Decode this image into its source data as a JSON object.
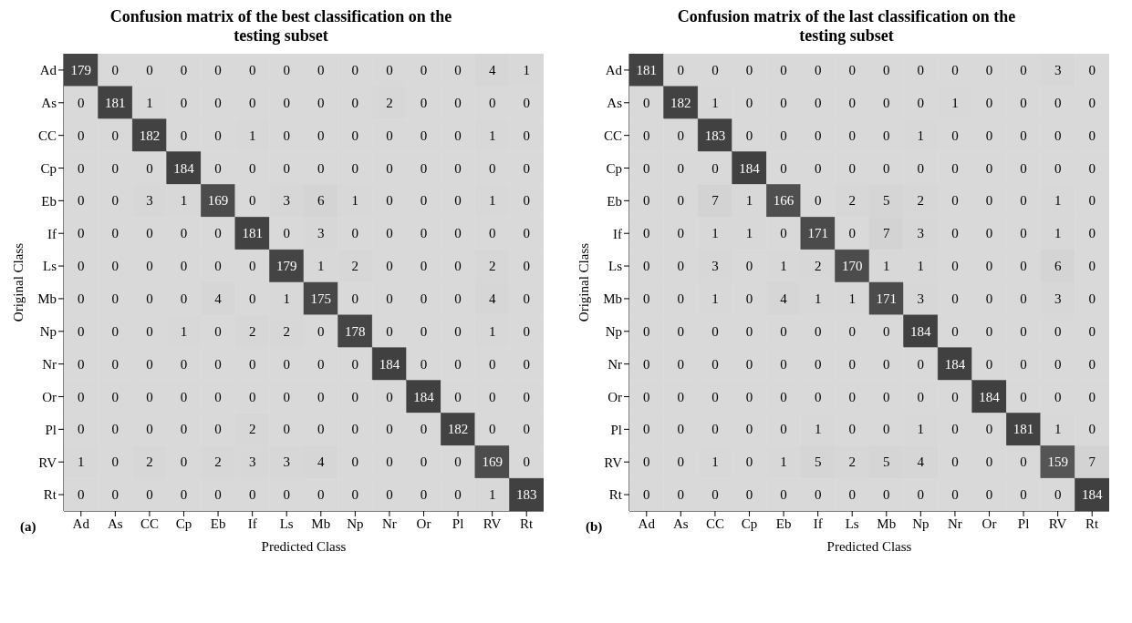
{
  "chart_data": [
    {
      "type": "heatmap",
      "title": "Confusion matrix of the best classification on the testing subset",
      "xlabel": "Predicted Class",
      "ylabel": "Original Class",
      "annotations": [
        "(a)"
      ],
      "data_labels": true,
      "categories": [
        "Ad",
        "As",
        "CC",
        "Cp",
        "Eb",
        "If",
        "Ls",
        "Mb",
        "Np",
        "Nr",
        "Or",
        "Pl",
        "RV",
        "Rt"
      ],
      "y_categories": [
        "Ad",
        "As",
        "CC",
        "Cp",
        "Eb",
        "If",
        "Ls",
        "Mb",
        "Np",
        "Nr",
        "Or",
        "Pl",
        "RV",
        "Rt"
      ],
      "cells": [
        [
          179,
          0,
          0,
          0,
          0,
          0,
          0,
          0,
          0,
          0,
          0,
          0,
          4,
          1
        ],
        [
          0,
          181,
          1,
          0,
          0,
          0,
          0,
          0,
          0,
          2,
          0,
          0,
          0,
          0
        ],
        [
          0,
          0,
          182,
          0,
          0,
          1,
          0,
          0,
          0,
          0,
          0,
          0,
          1,
          0
        ],
        [
          0,
          0,
          0,
          184,
          0,
          0,
          0,
          0,
          0,
          0,
          0,
          0,
          0,
          0
        ],
        [
          0,
          0,
          3,
          1,
          169,
          0,
          3,
          6,
          1,
          0,
          0,
          0,
          1,
          0
        ],
        [
          0,
          0,
          0,
          0,
          0,
          181,
          0,
          3,
          0,
          0,
          0,
          0,
          0,
          0
        ],
        [
          0,
          0,
          0,
          0,
          0,
          0,
          179,
          1,
          2,
          0,
          0,
          0,
          2,
          0
        ],
        [
          0,
          0,
          0,
          0,
          4,
          0,
          1,
          175,
          0,
          0,
          0,
          0,
          4,
          0
        ],
        [
          0,
          0,
          0,
          1,
          0,
          2,
          2,
          0,
          178,
          0,
          0,
          0,
          1,
          0
        ],
        [
          0,
          0,
          0,
          0,
          0,
          0,
          0,
          0,
          0,
          184,
          0,
          0,
          0,
          0
        ],
        [
          0,
          0,
          0,
          0,
          0,
          0,
          0,
          0,
          0,
          0,
          184,
          0,
          0,
          0
        ],
        [
          0,
          0,
          0,
          0,
          0,
          2,
          0,
          0,
          0,
          0,
          0,
          182,
          0,
          0
        ],
        [
          1,
          0,
          2,
          0,
          2,
          3,
          3,
          4,
          0,
          0,
          0,
          0,
          169,
          0
        ],
        [
          0,
          0,
          0,
          0,
          0,
          0,
          0,
          0,
          0,
          0,
          0,
          0,
          1,
          183
        ]
      ]
    },
    {
      "type": "heatmap",
      "title": "Confusion matrix of the last classification on the testing subset",
      "xlabel": "Predicted Class",
      "ylabel": "Original Class",
      "annotations": [
        "(b)"
      ],
      "data_labels": true,
      "categories": [
        "Ad",
        "As",
        "CC",
        "Cp",
        "Eb",
        "If",
        "Ls",
        "Mb",
        "Np",
        "Nr",
        "Or",
        "Pl",
        "RV",
        "Rt"
      ],
      "y_categories": [
        "Ad",
        "As",
        "CC",
        "Cp",
        "Eb",
        "If",
        "Ls",
        "Mb",
        "Np",
        "Nr",
        "Or",
        "Pl",
        "RV",
        "Rt"
      ],
      "cells": [
        [
          181,
          0,
          0,
          0,
          0,
          0,
          0,
          0,
          0,
          0,
          0,
          0,
          3,
          0
        ],
        [
          0,
          182,
          1,
          0,
          0,
          0,
          0,
          0,
          0,
          1,
          0,
          0,
          0,
          0
        ],
        [
          0,
          0,
          183,
          0,
          0,
          0,
          0,
          0,
          1,
          0,
          0,
          0,
          0,
          0
        ],
        [
          0,
          0,
          0,
          184,
          0,
          0,
          0,
          0,
          0,
          0,
          0,
          0,
          0,
          0
        ],
        [
          0,
          0,
          7,
          1,
          166,
          0,
          2,
          5,
          2,
          0,
          0,
          0,
          1,
          0
        ],
        [
          0,
          0,
          1,
          1,
          0,
          171,
          0,
          7,
          3,
          0,
          0,
          0,
          1,
          0
        ],
        [
          0,
          0,
          3,
          0,
          1,
          2,
          170,
          1,
          1,
          0,
          0,
          0,
          6,
          0
        ],
        [
          0,
          0,
          1,
          0,
          4,
          1,
          1,
          171,
          3,
          0,
          0,
          0,
          3,
          0
        ],
        [
          0,
          0,
          0,
          0,
          0,
          0,
          0,
          0,
          184,
          0,
          0,
          0,
          0,
          0
        ],
        [
          0,
          0,
          0,
          0,
          0,
          0,
          0,
          0,
          0,
          184,
          0,
          0,
          0,
          0
        ],
        [
          0,
          0,
          0,
          0,
          0,
          0,
          0,
          0,
          0,
          0,
          184,
          0,
          0,
          0
        ],
        [
          0,
          0,
          0,
          0,
          0,
          1,
          0,
          0,
          1,
          0,
          0,
          181,
          1,
          0
        ],
        [
          0,
          0,
          1,
          0,
          1,
          5,
          2,
          5,
          4,
          0,
          0,
          0,
          159,
          7
        ],
        [
          0,
          0,
          0,
          0,
          0,
          0,
          0,
          0,
          0,
          0,
          0,
          0,
          0,
          184
        ]
      ]
    }
  ]
}
